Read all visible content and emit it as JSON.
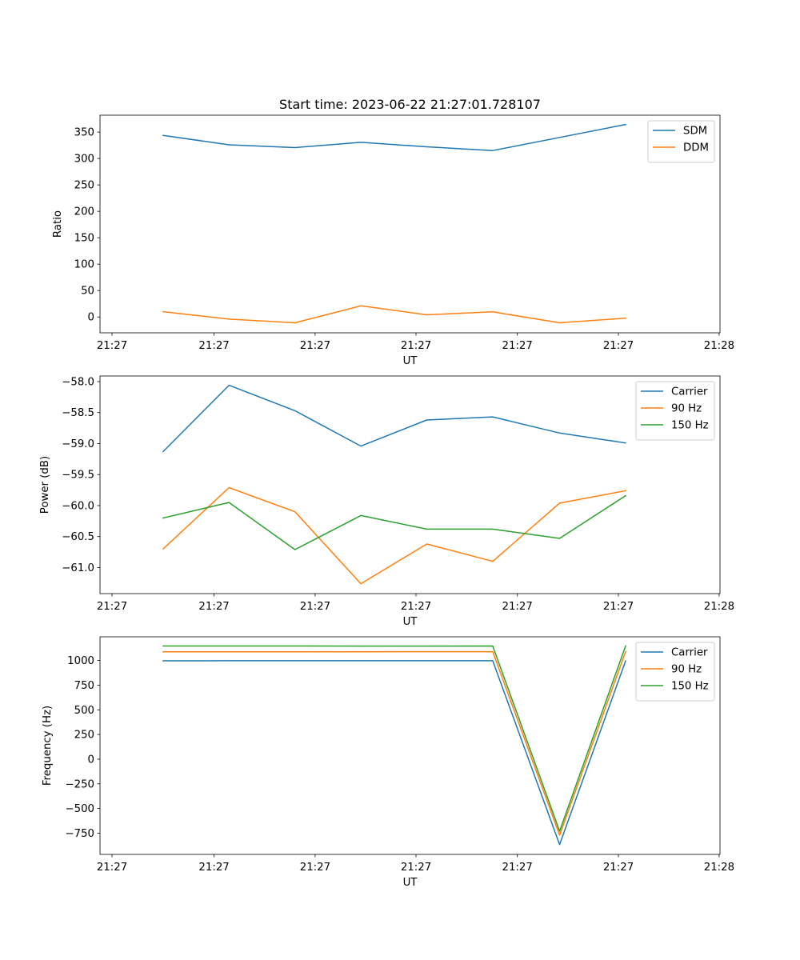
{
  "chart_data": [
    {
      "type": "line",
      "title": "Start time: 2023-06-22 21:27:01.728107",
      "xlabel": "UT",
      "ylabel": "Ratio",
      "x_tick_labels": [
        "21:27",
        "21:27",
        "21:27",
        "21:27",
        "21:27",
        "21:27",
        "21:28"
      ],
      "y_ticks": [
        0,
        50,
        100,
        150,
        200,
        250,
        300,
        350
      ],
      "ylim": [
        -30,
        382
      ],
      "grid": false,
      "legend_position": "upper right",
      "series": [
        {
          "name": "SDM",
          "color": "#1f77b4",
          "values": [
            343.7,
            326.0,
            320.7,
            330.6,
            322.1,
            315.1,
            339.9,
            364.5
          ]
        },
        {
          "name": "DDM",
          "color": "#ff7f0e",
          "values": [
            10.0,
            -4.1,
            -11.0,
            21.0,
            4.1,
            9.7,
            -11.1,
            -2.3
          ]
        }
      ]
    },
    {
      "type": "line",
      "title": "",
      "xlabel": "UT",
      "ylabel": "Power (dB)",
      "x_tick_labels": [
        "21:27",
        "21:27",
        "21:27",
        "21:27",
        "21:27",
        "21:27",
        "21:28"
      ],
      "y_ticks": [
        -58.0,
        -58.5,
        -59.0,
        -59.5,
        -60.0,
        -60.5,
        -61.0
      ],
      "y_tick_labels": [
        "−58.0",
        "−58.5",
        "−59.0",
        "−59.5",
        "−60.0",
        "−60.5",
        "−61.0"
      ],
      "ylim": [
        -61.42,
        -57.91
      ],
      "grid": false,
      "legend_position": "upper right",
      "series": [
        {
          "name": "Carrier",
          "color": "#1f77b4",
          "values": [
            -59.13,
            -58.06,
            -58.47,
            -59.04,
            -58.62,
            -58.57,
            -58.83,
            -58.99
          ]
        },
        {
          "name": "90 Hz",
          "color": "#ff7f0e",
          "values": [
            -60.7,
            -59.71,
            -60.1,
            -61.26,
            -60.62,
            -60.9,
            -59.96,
            -59.76
          ]
        },
        {
          "name": "150 Hz",
          "color": "#2ca02c",
          "values": [
            -60.2,
            -59.95,
            -60.71,
            -60.16,
            -60.38,
            -60.38,
            -60.53,
            -59.84
          ]
        }
      ]
    },
    {
      "type": "line",
      "title": "",
      "xlabel": "UT",
      "ylabel": "Frequency (Hz)",
      "x_tick_labels": [
        "21:27",
        "21:27",
        "21:27",
        "21:27",
        "21:27",
        "21:27",
        "21:28"
      ],
      "y_ticks": [
        1000,
        750,
        500,
        250,
        0,
        -250,
        -500,
        -750
      ],
      "y_tick_labels": [
        "1000",
        "750",
        "500",
        "250",
        "0",
        "−250",
        "−500",
        "−750"
      ],
      "ylim": [
        -965,
        1240
      ],
      "grid": false,
      "legend_position": "upper right",
      "series": [
        {
          "name": "Carrier",
          "color": "#1f77b4",
          "values": [
            997,
            998,
            998,
            998,
            998,
            998,
            -865,
            995
          ]
        },
        {
          "name": "90 Hz",
          "color": "#ff7f0e",
          "values": [
            1088,
            1088,
            1088,
            1088,
            1089,
            1089,
            -770,
            1090
          ]
        },
        {
          "name": "150 Hz",
          "color": "#2ca02c",
          "values": [
            1147,
            1147,
            1147,
            1146,
            1146,
            1147,
            -730,
            1147
          ]
        }
      ]
    }
  ]
}
